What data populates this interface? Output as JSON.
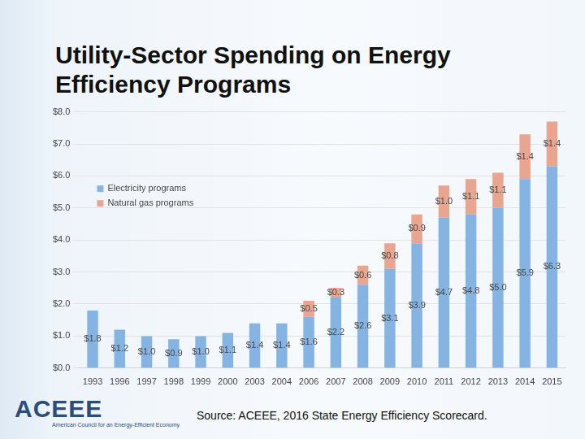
{
  "chart_data": {
    "type": "bar",
    "title": "Utility-Sector Spending on Energy Efficiency Programs",
    "categories": [
      "1993",
      "1996",
      "1997",
      "1998",
      "1999",
      "2000",
      "2003",
      "2004",
      "2006",
      "2007",
      "2008",
      "2009",
      "2010",
      "2011",
      "2012",
      "2013",
      "2014",
      "2015"
    ],
    "series": [
      {
        "name": "Electricity programs",
        "color": "#85b4e3",
        "values": [
          1.8,
          1.2,
          1.0,
          0.9,
          1.0,
          1.1,
          1.4,
          1.4,
          1.6,
          2.2,
          2.6,
          3.1,
          3.9,
          4.7,
          4.8,
          5.0,
          5.9,
          6.3
        ],
        "value_labels": [
          "$1.8",
          "$1.2",
          "$1.0",
          "$0.9",
          "$1.0",
          "$1.1",
          "$1.4",
          "$1.4",
          "$1.6",
          "$2.2",
          "$2.6",
          "$3.1",
          "$3.9",
          "$4.7",
          "$4.8",
          "$5.0",
          "$5.9",
          "$6.3"
        ]
      },
      {
        "name": "Natural gas programs",
        "color": "#e8a690",
        "values": [
          null,
          null,
          null,
          null,
          null,
          null,
          null,
          null,
          0.5,
          0.3,
          0.6,
          0.8,
          0.9,
          1.0,
          1.1,
          1.1,
          1.4,
          1.4
        ],
        "value_labels": [
          null,
          null,
          null,
          null,
          null,
          null,
          null,
          null,
          "$0.5",
          "$0.3",
          "$0.6",
          "$0.8",
          "$0.9",
          "$1.0",
          "$1.1",
          "$1.1",
          "$1.4",
          "$1.4"
        ]
      }
    ],
    "ylim": [
      0,
      8
    ],
    "yticks": [
      {
        "value": 0,
        "label": "$0.0"
      },
      {
        "value": 1,
        "label": "$1.0"
      },
      {
        "value": 2,
        "label": "$2.0"
      },
      {
        "value": 3,
        "label": "$3.0"
      },
      {
        "value": 4,
        "label": "$4.0"
      },
      {
        "value": 5,
        "label": "$5.0"
      },
      {
        "value": 6,
        "label": "$6.0"
      },
      {
        "value": 7,
        "label": "$7.0"
      },
      {
        "value": 8,
        "label": "$8.0"
      }
    ],
    "stacked": true,
    "grid": true,
    "legend": "upper left",
    "data_labels": true,
    "annotations": [
      "ACEEE",
      "American Council for an Energy-Efficient Economy",
      "Source: ACEEE, 2016 State Energy Efficiency Scorecard."
    ]
  }
}
